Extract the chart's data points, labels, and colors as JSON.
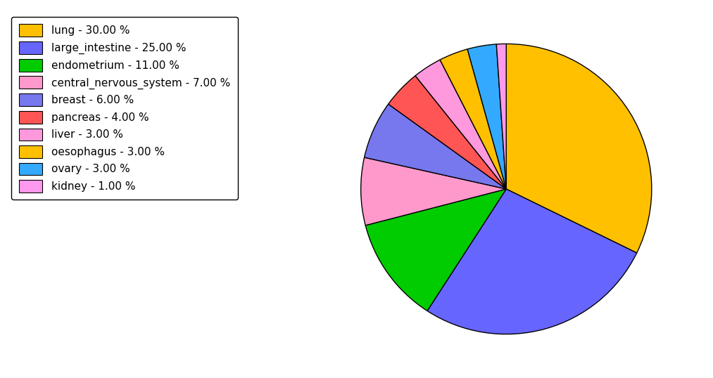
{
  "labels": [
    "lung",
    "large_intestine",
    "endometrium",
    "central_nervous_system",
    "breast",
    "pancreas",
    "liver",
    "oesophagus",
    "ovary",
    "kidney"
  ],
  "values": [
    30.0,
    25.0,
    11.0,
    7.0,
    6.0,
    4.0,
    3.0,
    3.0,
    3.0,
    1.0
  ],
  "colors": [
    "#FFC000",
    "#6666FF",
    "#00CC00",
    "#FF99CC",
    "#7777EE",
    "#FF5555",
    "#FF99DD",
    "#FFC000",
    "#33AAFF",
    "#FF99EE"
  ],
  "legend_labels": [
    "lung - 30.00 %",
    "large_intestine - 25.00 %",
    "endometrium - 11.00 %",
    "central_nervous_system - 7.00 %",
    "breast - 6.00 %",
    "pancreas - 4.00 %",
    "liver - 3.00 %",
    "oesophagus - 3.00 %",
    "ovary - 3.00 %",
    "kidney - 1.00 %"
  ],
  "legend_colors": [
    "#FFC000",
    "#6666FF",
    "#00CC00",
    "#FF99CC",
    "#7777EE",
    "#FF5555",
    "#FF99DD",
    "#FFC000",
    "#33AAFF",
    "#FF99EE"
  ],
  "startangle": 90,
  "figure_width": 10.13,
  "figure_height": 5.38,
  "dpi": 100
}
